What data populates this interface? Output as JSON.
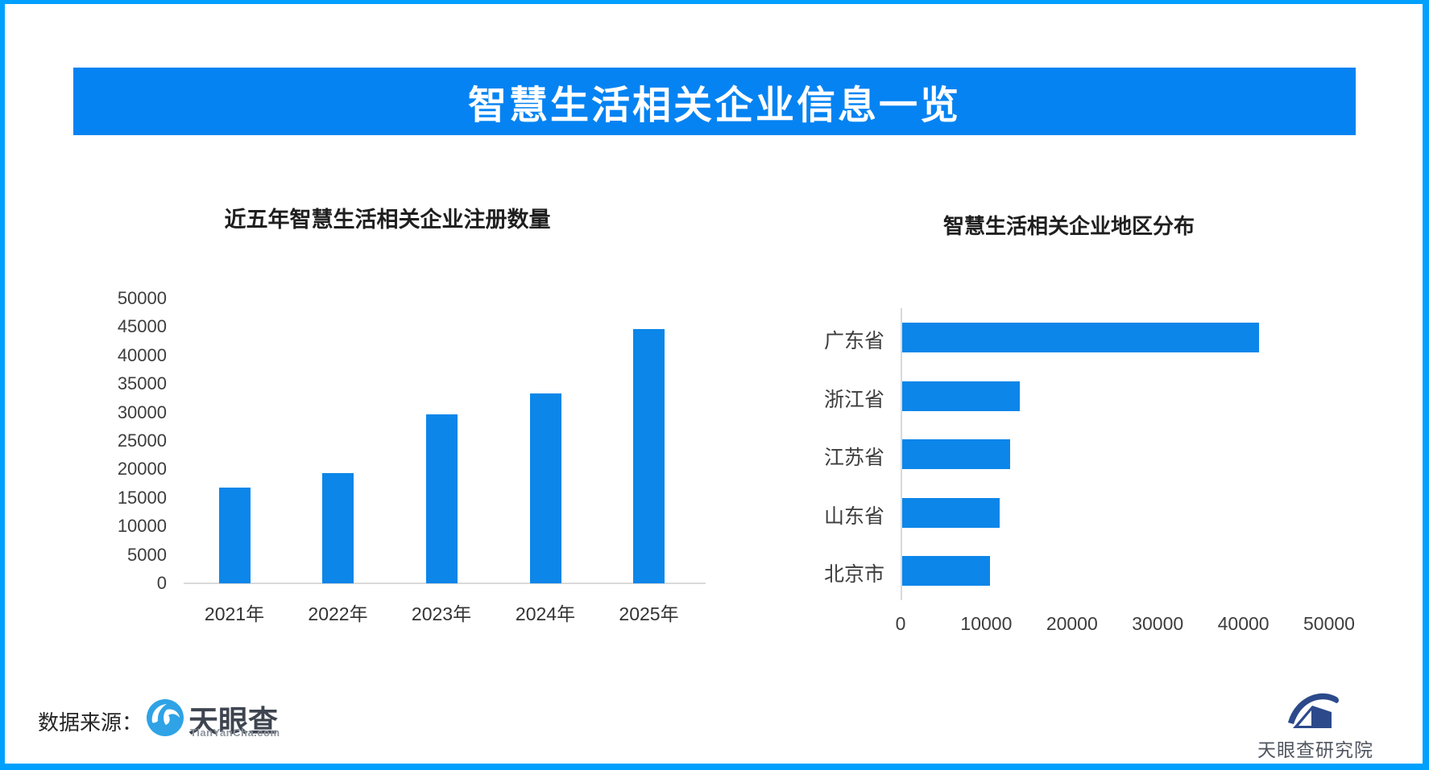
{
  "page": {
    "header_title": "智慧生活相关企业信息一览",
    "colors": {
      "outer_border": "#00A0FF",
      "banner": "#0583F2",
      "bar": "#0C86E9",
      "axis_line": "#D9D9D9",
      "tianyancha_logo_blue": "#2FA3E6",
      "institute_logo_navy": "#2C4A8B"
    }
  },
  "chart_data": [
    {
      "type": "bar",
      "orientation": "vertical",
      "title": "近五年智慧生活相关企业注册数量",
      "categories": [
        "2021年",
        "2022年",
        "2023年",
        "2024年",
        "2025年"
      ],
      "values": [
        16800,
        19400,
        29700,
        33300,
        44700
      ],
      "xlabel": "",
      "ylabel": "",
      "ylim": [
        0,
        50000
      ],
      "yticks": [
        0,
        5000,
        10000,
        15000,
        20000,
        25000,
        30000,
        35000,
        40000,
        45000,
        50000
      ],
      "grid": false,
      "legend": false,
      "bar_color": "#0C86E9"
    },
    {
      "type": "bar",
      "orientation": "horizontal",
      "title": "智慧生活相关企业地区分布",
      "categories": [
        "广东省",
        "浙江省",
        "江苏省",
        "山东省",
        "北京市"
      ],
      "values": [
        41600,
        13700,
        12600,
        11400,
        10200
      ],
      "xlabel": "",
      "ylabel": "",
      "xlim": [
        0,
        50000
      ],
      "xticks": [
        0,
        10000,
        20000,
        30000,
        40000,
        50000
      ],
      "grid": false,
      "legend": false,
      "bar_color": "#0C86E9"
    }
  ],
  "footer": {
    "source_label": "数据来源：",
    "tianyancha_name": "天眼查",
    "tianyancha_domain": "TianYanCha.com",
    "institute_name": "天眼查研究院"
  },
  "icons": {
    "tianyancha_logo": "blue-swirl-eye-circle",
    "institute_logo": "navy-swoosh-over-house"
  }
}
